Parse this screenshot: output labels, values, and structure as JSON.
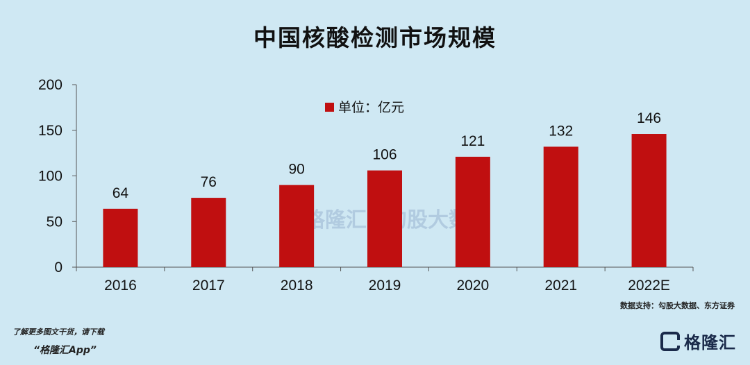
{
  "title": "中国核酸检测市场规模",
  "chart_data": {
    "type": "bar",
    "categories": [
      "2016",
      "2017",
      "2018",
      "2019",
      "2020",
      "2021",
      "2022E"
    ],
    "series": [
      {
        "name": "单位：亿元",
        "values": [
          64,
          76,
          90,
          106,
          121,
          132,
          146
        ]
      }
    ],
    "ylim": [
      0,
      200
    ],
    "yticks": [
      0,
      50,
      100,
      150,
      200
    ],
    "legend_position": "top-center",
    "grid": false,
    "bar_color": "#c00f10"
  },
  "source": "数据支持：勾股大数据、东方证券",
  "watermarks": [
    "格隆汇",
    "勾股大数据"
  ],
  "footer": {
    "note": "了解更多图文干货，请下载",
    "app": "“格隆汇App”",
    "brand": "格隆汇"
  }
}
